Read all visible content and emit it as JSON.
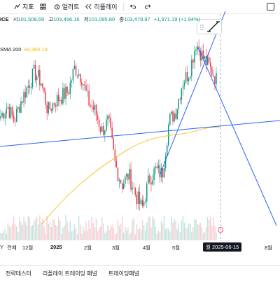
{
  "toolbar": {
    "partial_left": "",
    "indicators_label": "지표",
    "alerts_label": "얼러트",
    "replay_label": "리플레이"
  },
  "legend": {
    "symbol_tail": "ICE",
    "high_label": "시",
    "open_value": "101,508.69",
    "high_label2": "고",
    "high_value": "103,496.16",
    "low_label": "저",
    "low_value": "101,095.80",
    "close_label": "종",
    "close_value": "103,479.87",
    "change": "+1,971.19 (+1.94%)"
  },
  "sma": {
    "label": "SMA 200",
    "value": "94,365.18"
  },
  "xaxis": {
    "labels": [
      "12월",
      "2025",
      "2월",
      "3월",
      "4월",
      "5월",
      "8월"
    ],
    "tz_label": "Y",
    "all_label": "전체",
    "date_badge": "월 2025-06-15"
  },
  "bottom": {
    "tabs": [
      "전략테스터",
      "리플레이 트레이딩 패널",
      "트레이딩패널"
    ]
  },
  "colors": {
    "up": "#089981",
    "down": "#f23645",
    "trendline": "#2962ff",
    "sma": "#f2b800"
  },
  "chart_data": {
    "type": "candlestick",
    "title": "",
    "x_labels": [
      "12월",
      "2025",
      "2월",
      "3월",
      "4월",
      "5월",
      "8월"
    ],
    "y_estimated": [
      96000,
      98000,
      95000,
      99000,
      102000,
      105000,
      103000,
      97000,
      99000,
      100000,
      101000,
      106000,
      104000,
      99000,
      97000,
      93000,
      95000,
      86000,
      82000,
      84000,
      80000,
      77000,
      83000,
      85000,
      84000,
      95000,
      97000,
      103000,
      105000,
      111000,
      108000,
      106000,
      103500
    ],
    "sma200_estimated": [
      null,
      null,
      null,
      null,
      null,
      null,
      null,
      null,
      null,
      null,
      null,
      null,
      null,
      null,
      null,
      null,
      null,
      82000,
      83000,
      84500,
      86000,
      87000,
      88500,
      89500,
      90500,
      91500,
      92000,
      93000,
      93500,
      94000,
      94200,
      94300,
      94365
    ],
    "last_value": 103479.87
  }
}
